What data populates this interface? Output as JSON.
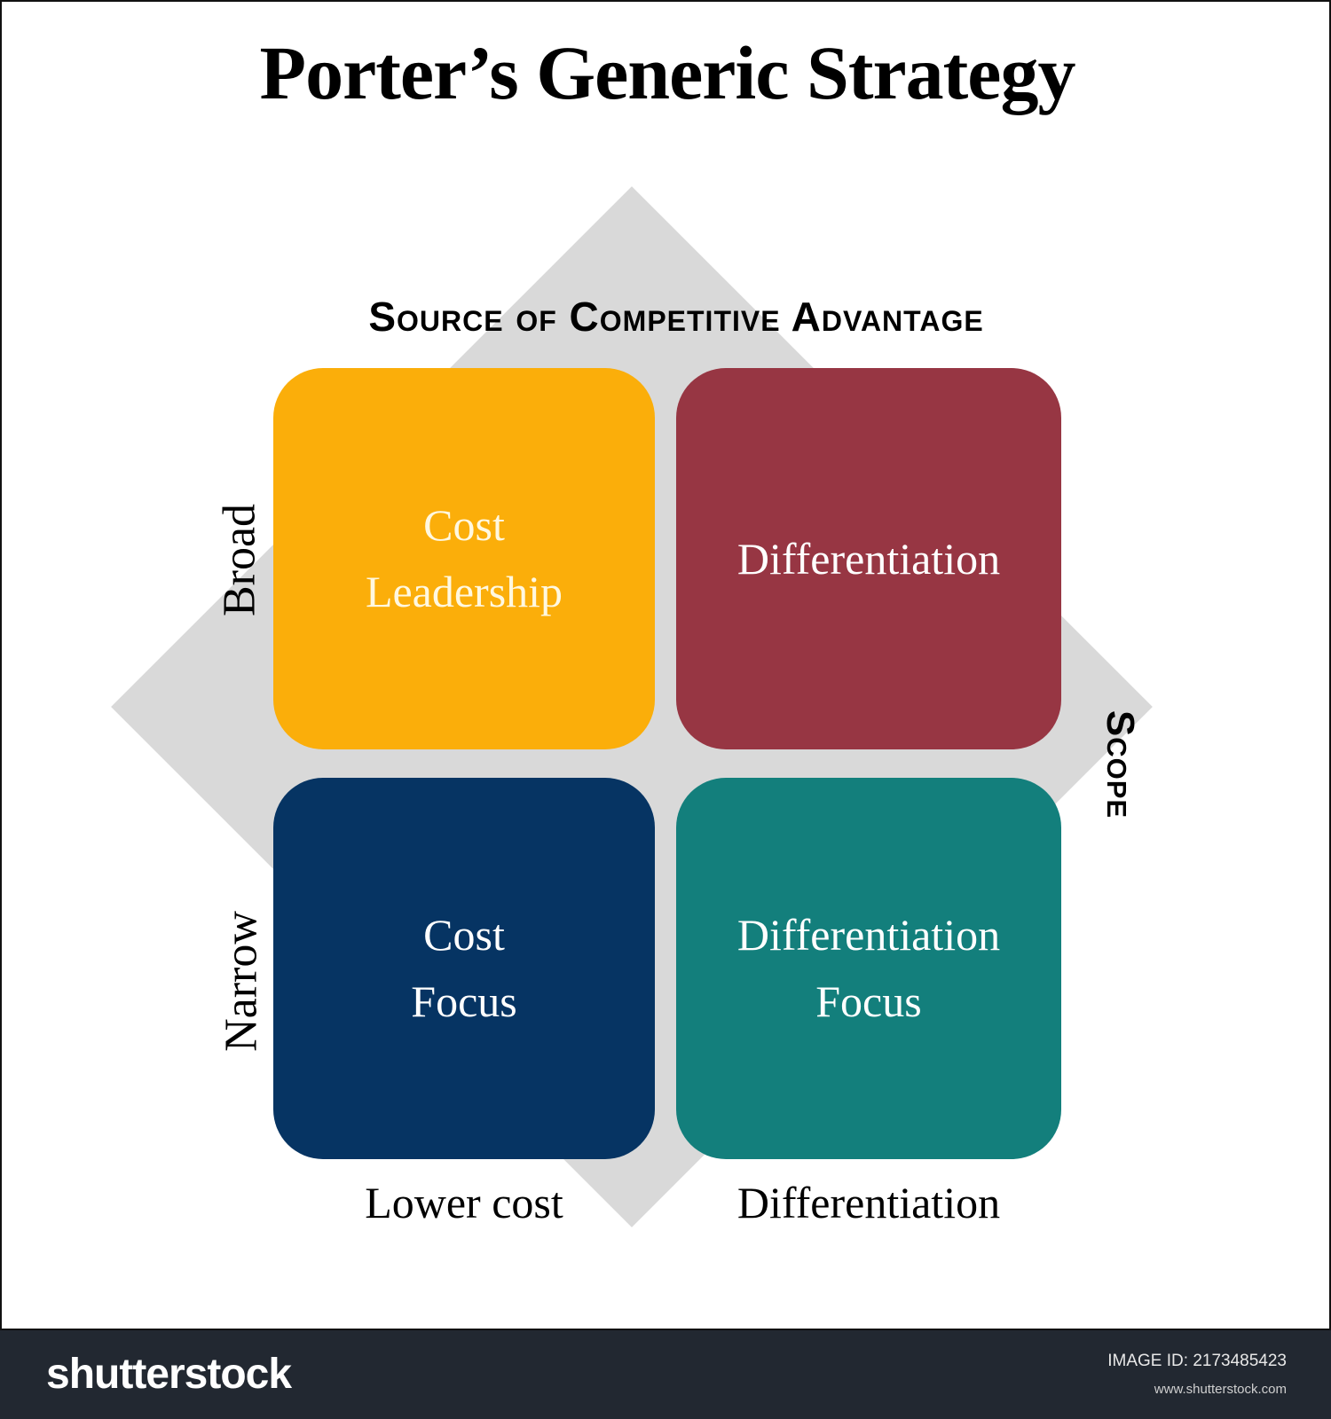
{
  "title": "Porter’s Generic Strategy",
  "top_axis_label": "Source of Competitive Advantage",
  "right_axis_label": "Scope",
  "row_labels": {
    "broad": "Broad",
    "narrow": "Narrow"
  },
  "column_labels": {
    "lower_cost": "Lower cost",
    "differentiation": "Differentiation"
  },
  "quadrants": [
    {
      "line1": "Cost",
      "line2": "Leadership",
      "color": "#fbae0a"
    },
    {
      "line1": "Differentiation",
      "line2": "",
      "color": "#973643"
    },
    {
      "line1": "Cost",
      "line2": "Focus",
      "color": "#063463"
    },
    {
      "line1": "Differentiation",
      "line2": "Focus",
      "color": "#137f7c"
    }
  ],
  "footer": {
    "brand": "shutterstock",
    "image_id": "IMAGE ID: 2173485423",
    "site": "www.shutterstock.com"
  }
}
